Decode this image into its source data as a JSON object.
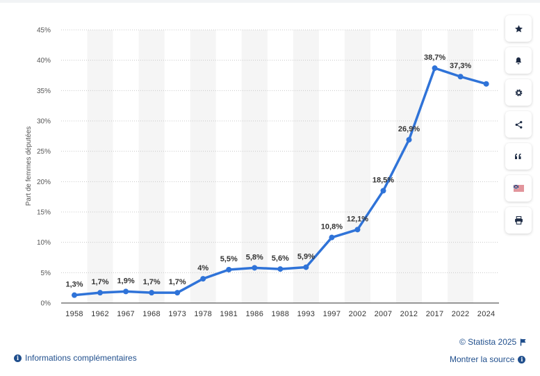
{
  "chart_data": {
    "type": "line",
    "title": "",
    "xlabel": "",
    "ylabel": "Part de femmes députées",
    "ylim": [
      0,
      45
    ],
    "yticks": [
      "0%",
      "5%",
      "10%",
      "15%",
      "20%",
      "25%",
      "30%",
      "35%",
      "40%",
      "45%"
    ],
    "grid": true,
    "x": [
      "1958",
      "1962",
      "1967",
      "1968",
      "1973",
      "1978",
      "1981",
      "1986",
      "1988",
      "1993",
      "1997",
      "2002",
      "2007",
      "2012",
      "2017",
      "2022",
      "2024"
    ],
    "series": [
      {
        "values": [
          1.3,
          1.7,
          1.9,
          1.7,
          1.7,
          4,
          5.5,
          5.8,
          5.6,
          5.9,
          10.8,
          12.1,
          18.5,
          26.9,
          38.7,
          37.3,
          36.1
        ],
        "data_labels": [
          "1,3%",
          "1,7%",
          "1,9%",
          "1,7%",
          "1,7%",
          "4%",
          "5,5%",
          "5,8%",
          "5,6%",
          "5,9%",
          "10,8%",
          "12,1%",
          "18,5%",
          "26,9%",
          "38,7%",
          "37,3%",
          ""
        ]
      }
    ],
    "line_color": "#2f73d8"
  },
  "toolbar": {
    "items": [
      {
        "name": "favorite-button",
        "icon": "star-icon"
      },
      {
        "name": "notification-button",
        "icon": "bell-icon"
      },
      {
        "name": "settings-button",
        "icon": "gear-icon"
      },
      {
        "name": "share-button",
        "icon": "share-icon"
      },
      {
        "name": "cite-button",
        "icon": "quote-icon"
      },
      {
        "name": "language-button",
        "icon": "flag-icon"
      },
      {
        "name": "print-button",
        "icon": "printer-icon"
      }
    ]
  },
  "footer": {
    "copyright": "© Statista 2025",
    "more_info": "Informations complémentaires",
    "show_source": "Montrer la source"
  },
  "colors": {
    "link": "#1f4e8c",
    "band": "#f5f5f5"
  }
}
